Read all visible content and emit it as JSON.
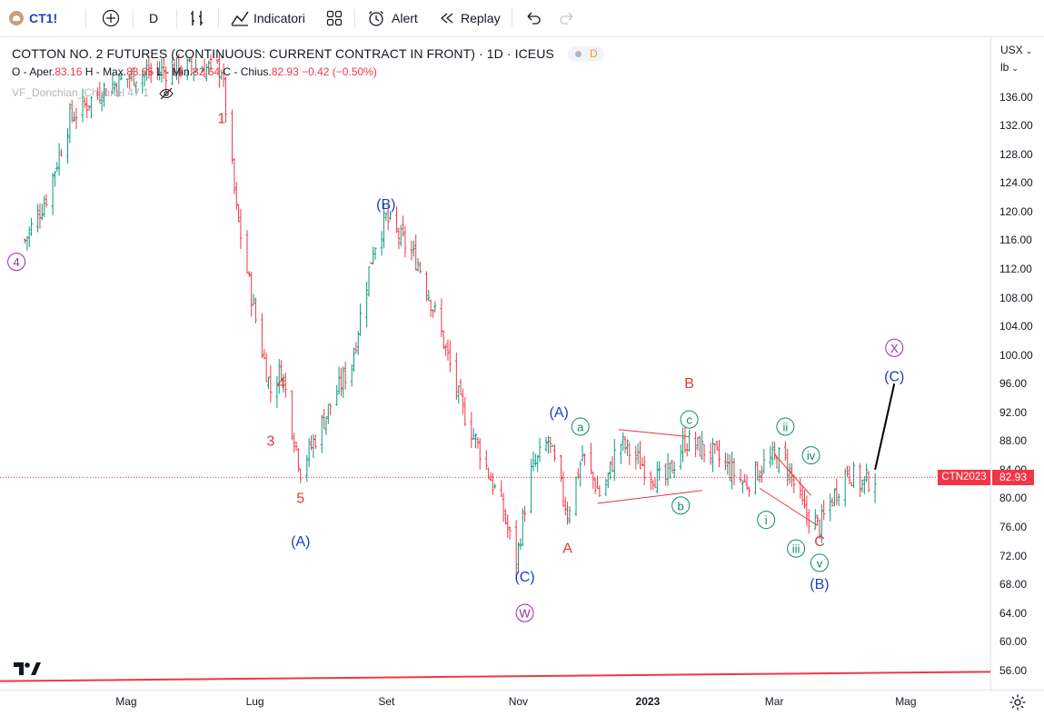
{
  "toolbar": {
    "symbol": "CT1!",
    "interval": "D",
    "indicators_label": "Indicatori",
    "alert_label": "Alert",
    "replay_label": "Replay"
  },
  "legend": {
    "title": "COTTON NO. 2 FUTURES (CONTINUOUS: CURRENT CONTRACT IN FRONT) · 1D · ICEUS",
    "badge": "D",
    "open_label": "O - Aper.",
    "open": "83.16",
    "high_label": "H - Max.",
    "high": "83.65",
    "low_label": "L - Min.",
    "low": "82.64",
    "close_label": "C - Chius.",
    "close": "82.93",
    "change": "−0.42 (−0.50%)",
    "indicator": "VF_Donchian_Channel 47 1"
  },
  "price_axis": {
    "currency": "USX",
    "unit": "lb",
    "ticks": [
      "136.00",
      "132.00",
      "128.00",
      "124.00",
      "120.00",
      "116.00",
      "112.00",
      "108.00",
      "104.00",
      "100.00",
      "96.00",
      "92.00",
      "88.00",
      "84.00",
      "80.00",
      "76.00",
      "72.00",
      "68.00",
      "64.00",
      "60.00",
      "56.00"
    ],
    "last_price": "82.93",
    "last_price_tag": "CTN2023"
  },
  "time_axis": {
    "labels": [
      "Mag",
      "Lug",
      "Set",
      "Nov",
      "2023",
      "Mar",
      "Mag"
    ]
  },
  "colors": {
    "up": "#089981",
    "down": "#f23645",
    "wave_red": "#e53935",
    "wave_blue": "#1e3fc4",
    "wave_green": "#0b8a6a",
    "wave_purple": "#9c27b0"
  },
  "chart_data": {
    "type": "candlestick",
    "title": "COTTON NO. 2 FUTURES (CONTINUOUS: CURRENT CONTRACT IN FRONT) · 1D · ICEUS",
    "ylim": [
      54,
      142
    ],
    "yticks": [
      136,
      132,
      128,
      124,
      120,
      116,
      112,
      108,
      104,
      100,
      96,
      92,
      88,
      84,
      80,
      76,
      72,
      68,
      64,
      60,
      56
    ],
    "price_path": [
      {
        "date": "2022-03-15",
        "price": 116
      },
      {
        "date": "2022-03-25",
        "price": 122
      },
      {
        "date": "2022-04-05",
        "price": 133
      },
      {
        "date": "2022-04-20",
        "price": 137
      },
      {
        "date": "2022-05-05",
        "price": 139
      },
      {
        "date": "2022-05-25",
        "price": 140
      },
      {
        "date": "2022-06-15",
        "price": 140
      },
      {
        "date": "2022-06-22",
        "price": 120
      },
      {
        "date": "2022-07-01",
        "price": 105
      },
      {
        "date": "2022-07-08",
        "price": 95
      },
      {
        "date": "2022-07-13",
        "price": 98
      },
      {
        "date": "2022-07-22",
        "price": 84
      },
      {
        "date": "2022-08-05",
        "price": 93
      },
      {
        "date": "2022-08-15",
        "price": 99
      },
      {
        "date": "2022-08-25",
        "price": 115
      },
      {
        "date": "2022-08-31",
        "price": 119
      },
      {
        "date": "2022-09-15",
        "price": 113
      },
      {
        "date": "2022-09-25",
        "price": 104
      },
      {
        "date": "2022-10-05",
        "price": 93
      },
      {
        "date": "2022-10-15",
        "price": 86
      },
      {
        "date": "2022-10-25",
        "price": 78
      },
      {
        "date": "2022-10-31",
        "price": 71
      },
      {
        "date": "2022-11-06",
        "price": 83
      },
      {
        "date": "2022-11-15",
        "price": 88
      },
      {
        "date": "2022-11-24",
        "price": 78
      },
      {
        "date": "2022-12-01",
        "price": 86
      },
      {
        "date": "2022-12-10",
        "price": 80
      },
      {
        "date": "2022-12-18",
        "price": 88
      },
      {
        "date": "2022-12-28",
        "price": 85
      },
      {
        "date": "2023-01-08",
        "price": 82
      },
      {
        "date": "2023-01-18",
        "price": 88
      },
      {
        "date": "2023-02-01",
        "price": 86
      },
      {
        "date": "2023-02-15",
        "price": 82
      },
      {
        "date": "2023-02-25",
        "price": 85
      },
      {
        "date": "2023-03-05",
        "price": 86
      },
      {
        "date": "2023-03-15",
        "price": 78
      },
      {
        "date": "2023-03-22",
        "price": 76
      },
      {
        "date": "2023-03-28",
        "price": 80
      },
      {
        "date": "2023-04-04",
        "price": 84
      },
      {
        "date": "2023-04-10",
        "price": 82
      },
      {
        "date": "2023-04-17",
        "price": 83
      }
    ],
    "projection": [
      {
        "date": "2023-04-17",
        "price": 84
      },
      {
        "date": "2023-04-26",
        "price": 96
      }
    ],
    "support_line": [
      {
        "date": "2022-03-10",
        "price": 54.5
      },
      {
        "date": "2023-06-20",
        "price": 55.8
      }
    ],
    "wave_labels": [
      {
        "text": "1",
        "date": "2022-06-15",
        "price": 133,
        "color": "red",
        "circle": false
      },
      {
        "text": "4",
        "date": "2022-03-11",
        "price": 113,
        "color": "purple",
        "circle": true
      },
      {
        "text": "(B)",
        "date": "2022-08-31",
        "price": 121,
        "color": "blue",
        "circle": false
      },
      {
        "text": "4",
        "date": "2022-07-13",
        "price": 96,
        "color": "red",
        "circle": false
      },
      {
        "text": "3",
        "date": "2022-07-08",
        "price": 88,
        "color": "red",
        "circle": false
      },
      {
        "text": "5",
        "date": "2022-07-22",
        "price": 80,
        "color": "red",
        "circle": false
      },
      {
        "text": "(A)",
        "date": "2022-07-22",
        "price": 74,
        "color": "blue",
        "circle": false
      },
      {
        "text": "(A)",
        "date": "2022-11-20",
        "price": 92,
        "color": "blue",
        "circle": false
      },
      {
        "text": "(C)",
        "date": "2022-11-04",
        "price": 69,
        "color": "blue",
        "circle": false
      },
      {
        "text": "W",
        "date": "2022-11-04",
        "price": 64,
        "color": "purple",
        "circle": true
      },
      {
        "text": "A",
        "date": "2022-11-24",
        "price": 73,
        "color": "red",
        "circle": false
      },
      {
        "text": "a",
        "date": "2022-11-30",
        "price": 90,
        "color": "green",
        "circle": true
      },
      {
        "text": "B",
        "date": "2023-01-20",
        "price": 96,
        "color": "red",
        "circle": false
      },
      {
        "text": "c",
        "date": "2023-01-20",
        "price": 91,
        "color": "green",
        "circle": true
      },
      {
        "text": "b",
        "date": "2023-01-16",
        "price": 79,
        "color": "green",
        "circle": true
      },
      {
        "text": "i",
        "date": "2023-02-25",
        "price": 77,
        "color": "green",
        "circle": true
      },
      {
        "text": "ii",
        "date": "2023-03-06",
        "price": 90,
        "color": "green",
        "circle": true
      },
      {
        "text": "iii",
        "date": "2023-03-11",
        "price": 73,
        "color": "green",
        "circle": true
      },
      {
        "text": "iv",
        "date": "2023-03-18",
        "price": 86,
        "color": "green",
        "circle": true
      },
      {
        "text": "C",
        "date": "2023-03-22",
        "price": 74,
        "color": "red",
        "circle": false
      },
      {
        "text": "v",
        "date": "2023-03-22",
        "price": 71,
        "color": "green",
        "circle": true
      },
      {
        "text": "(B)",
        "date": "2023-03-22",
        "price": 68,
        "color": "blue",
        "circle": false
      },
      {
        "text": "X",
        "date": "2023-04-26",
        "price": 101,
        "color": "purple",
        "circle": true
      },
      {
        "text": "(C)",
        "date": "2023-04-26",
        "price": 97,
        "color": "blue",
        "circle": false
      }
    ]
  }
}
